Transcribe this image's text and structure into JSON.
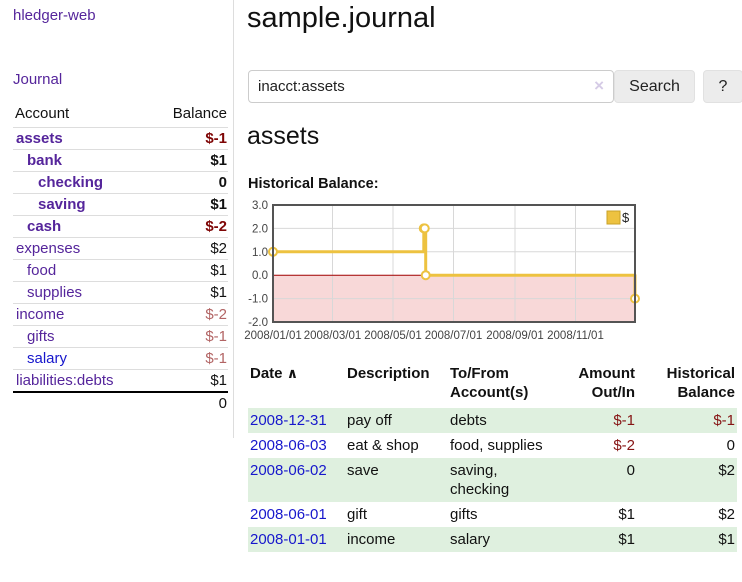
{
  "app": {
    "title": "hledger-web",
    "nav_journal": "Journal"
  },
  "sidebar": {
    "header": {
      "account": "Account",
      "balance": "Balance"
    },
    "rows": [
      {
        "name": "assets",
        "balance": "$-1"
      },
      {
        "name": "bank",
        "balance": "$1"
      },
      {
        "name": "checking",
        "balance": "0"
      },
      {
        "name": "saving",
        "balance": "$1"
      },
      {
        "name": "cash",
        "balance": "$-2"
      },
      {
        "name": "expenses",
        "balance": "$2"
      },
      {
        "name": "food",
        "balance": "$1"
      },
      {
        "name": "supplies",
        "balance": "$1"
      },
      {
        "name": "income",
        "balance": "$-2"
      },
      {
        "name": "gifts",
        "balance": "$-1"
      },
      {
        "name": "salary",
        "balance": "$-1"
      },
      {
        "name": "liabilities:debts",
        "balance": "$1"
      }
    ],
    "total": "0"
  },
  "main": {
    "title": "sample.journal",
    "search": {
      "value": "inacct:assets",
      "clear_icon": "×",
      "button": "Search",
      "help_button": "?"
    },
    "account_heading": "assets"
  },
  "chart_data": {
    "type": "line",
    "title": "Historical Balance:",
    "legend": {
      "label": "$",
      "position": "top-right"
    },
    "series": [
      {
        "name": "$",
        "color": "#edc240",
        "step": true,
        "points": [
          {
            "date": "2008-01-01",
            "value": 1
          },
          {
            "date": "2008-06-01",
            "value": 2
          },
          {
            "date": "2008-06-02",
            "value": 2
          },
          {
            "date": "2008-06-03",
            "value": 0
          },
          {
            "date": "2008-12-31",
            "value": -1
          }
        ]
      }
    ],
    "xrange": [
      "2008-01-01",
      "2008-12-31"
    ],
    "ylim": [
      -2,
      3
    ],
    "yticks": [
      "3.0",
      "2.0",
      "1.0",
      "0.0",
      "-1.0",
      "-2.0"
    ],
    "xticks": [
      "2008/01/01",
      "2008/03/01",
      "2008/05/01",
      "2008/07/01",
      "2008/09/01",
      "2008/11/01"
    ],
    "grid": true,
    "colors": {
      "border": "#545454",
      "grid": "#d8d8d8",
      "zero_line": "#a00000",
      "negative_region": "#f8d8d8",
      "axis_text": "#444444"
    }
  },
  "register": {
    "sort_icon": "∧",
    "columns": [
      {
        "l1": "Date",
        "l2": ""
      },
      {
        "l1": "Description",
        "l2": ""
      },
      {
        "l1": "To/From",
        "l2": "Account(s)"
      },
      {
        "l1": "Amount",
        "l2": "Out/In"
      },
      {
        "l1": "Historical",
        "l2": "Balance"
      }
    ],
    "rows": [
      {
        "date": "2008-12-31",
        "description": "pay off",
        "accounts": "debts",
        "amount": "$-1",
        "balance": "$-1"
      },
      {
        "date": "2008-06-03",
        "description": "eat & shop",
        "accounts": "food, supplies",
        "amount": "$-2",
        "balance": "0"
      },
      {
        "date": "2008-06-02",
        "description": "save",
        "accounts": "saving, checking",
        "amount": "0",
        "balance": "$2"
      },
      {
        "date": "2008-06-01",
        "description": "gift",
        "accounts": "gifts",
        "amount": "$1",
        "balance": "$2"
      },
      {
        "date": "2008-01-01",
        "description": "income",
        "accounts": "salary",
        "amount": "$1",
        "balance": "$1"
      }
    ]
  }
}
